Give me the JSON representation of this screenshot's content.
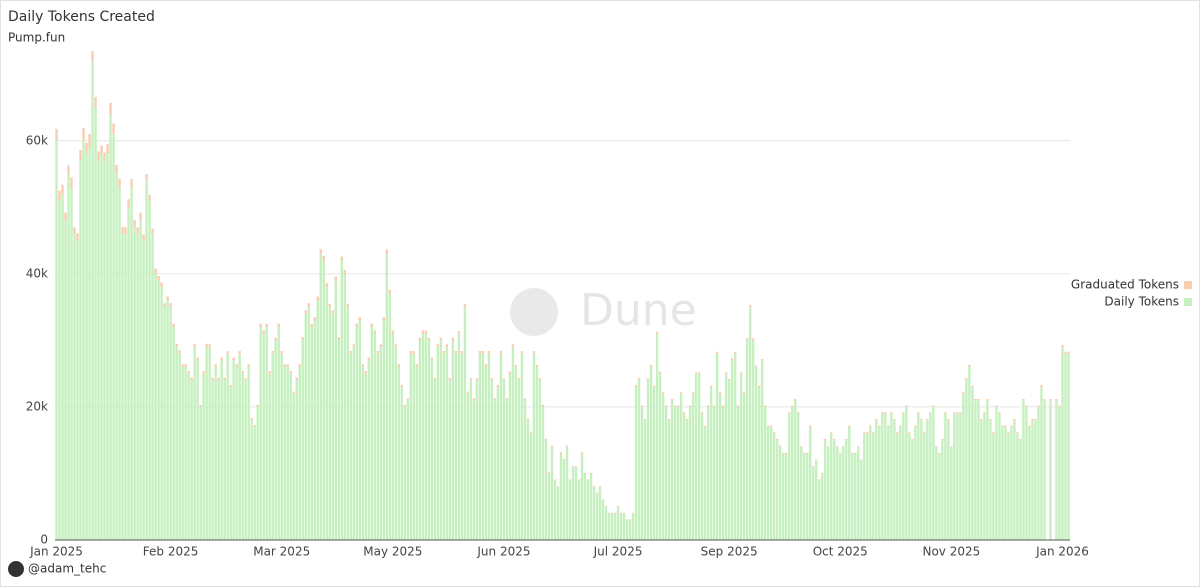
{
  "chart_data": {
    "type": "stacked_bar",
    "title": "Daily Tokens Created",
    "subtitle": "Pump.fun",
    "watermark": "Dune",
    "credit": "@adam_tehc",
    "categories": [
      "Jan 2025",
      null,
      null,
      null,
      null,
      null,
      null,
      null,
      null,
      null,
      null,
      null,
      null,
      null,
      null,
      null,
      null,
      null,
      null,
      null,
      null,
      null,
      null,
      null,
      null,
      null,
      null,
      null,
      null,
      null,
      null,
      null,
      null,
      null,
      null,
      null,
      null,
      null,
      "Feb 2025",
      null,
      null,
      null,
      null,
      null,
      null,
      null,
      null,
      null,
      null,
      null,
      null,
      null,
      null,
      null,
      null,
      null,
      null,
      null,
      null,
      null,
      null,
      null,
      null,
      null,
      null,
      null,
      null,
      null,
      null,
      null,
      null,
      null,
      null,
      null,
      null,
      "Mar 2025",
      null,
      null,
      null,
      null,
      null,
      null,
      null,
      null,
      null,
      null,
      null,
      null,
      null,
      null,
      null,
      null,
      null,
      null,
      null,
      null,
      null,
      null,
      null,
      null,
      null,
      null,
      null,
      null,
      null,
      null,
      null,
      null,
      null,
      null,
      null,
      null,
      "May 2025",
      null,
      null,
      null,
      null,
      null,
      null,
      null,
      null,
      null,
      null,
      null,
      null,
      null,
      null,
      null,
      null,
      null,
      null,
      null,
      null,
      null,
      null,
      null,
      null,
      null,
      null,
      null,
      null,
      null,
      null,
      null,
      null,
      null,
      null,
      null,
      null,
      "Jun 2025",
      null,
      null,
      null,
      null,
      null,
      null,
      null,
      null,
      null,
      null,
      null,
      null,
      null,
      null,
      null,
      null,
      null,
      null,
      null,
      null,
      null,
      null,
      null,
      null,
      null,
      null,
      null,
      null,
      null,
      null,
      null,
      null,
      null,
      null,
      null,
      null,
      null,
      "Jul 2025",
      null,
      null,
      null,
      null,
      null,
      null,
      null,
      null,
      null,
      null,
      null,
      null,
      null,
      null,
      null,
      null,
      null,
      null,
      null,
      null,
      null,
      null,
      null,
      null,
      null,
      null,
      null,
      null,
      null,
      null,
      null,
      null,
      null,
      null,
      null,
      null,
      "Sep 2025",
      null,
      null,
      null,
      null,
      null,
      null,
      null,
      null,
      null,
      null,
      null,
      null,
      null,
      null,
      null,
      null,
      null,
      null,
      null,
      null,
      null,
      null,
      null,
      null,
      null,
      null,
      null,
      null,
      null,
      null,
      null,
      null,
      null,
      null,
      null,
      null,
      "Oct 2025",
      null,
      null,
      null,
      null,
      null,
      null,
      null,
      null,
      null,
      null,
      null,
      null,
      null,
      null,
      null,
      null,
      null,
      null,
      null,
      null,
      null,
      null,
      null,
      null,
      null,
      null,
      null,
      null,
      null,
      null,
      null,
      null,
      null,
      null,
      null,
      null,
      "Nov 2025",
      null,
      null,
      null,
      null,
      null,
      null,
      null,
      null,
      null,
      null,
      null,
      null,
      null,
      null,
      null,
      null,
      null,
      null,
      null,
      null,
      null,
      null,
      null,
      null,
      null,
      null,
      null,
      null,
      null,
      null,
      null,
      null,
      null,
      null,
      null,
      null,
      "Jan 2026",
      null,
      null
    ],
    "series": [
      {
        "name": "Daily Tokens",
        "color": "#c6f0c0",
        "values": [
          60000,
          51000,
          52000,
          48000,
          55000,
          53000,
          46000,
          45000,
          57000,
          60000,
          58000,
          59000,
          72000,
          65000,
          57000,
          58000,
          57000,
          58000,
          64000,
          61000,
          55000,
          53000,
          46000,
          46000,
          50000,
          53000,
          47000,
          46000,
          48000,
          45000,
          54000,
          51000,
          46000,
          40000,
          39000,
          38000,
          35000,
          36000,
          35000,
          32000,
          29000,
          28000,
          26000,
          26000,
          25000,
          24000,
          29000,
          27000,
          20000,
          25000,
          29000,
          29000,
          24000,
          26000,
          24000,
          27000,
          24000,
          28000,
          23000,
          27000,
          26000,
          28000,
          25000,
          24000,
          26000,
          18000,
          17000,
          20000,
          32000,
          31000,
          32000,
          25000,
          28000,
          30000,
          32000,
          28000,
          26000,
          26000,
          25000,
          22000,
          24000,
          26000,
          30000,
          34000,
          35000,
          32000,
          33000,
          36000,
          43000,
          42000,
          38000,
          35000,
          34000,
          39000,
          30000,
          42000,
          40000,
          35000,
          28000,
          29000,
          32000,
          33000,
          26000,
          25000,
          27000,
          32000,
          31000,
          28000,
          29000,
          33000,
          43000,
          37000,
          31000,
          29000,
          26000,
          23000,
          20000,
          21000,
          28000,
          28000,
          26000,
          30000,
          31000,
          31000,
          30000,
          27000,
          24000,
          29000,
          30000,
          28000,
          29000,
          24000,
          30000,
          28000,
          31000,
          28000,
          35000,
          22000,
          24000,
          21000,
          24000,
          28000,
          28000,
          26000,
          28000,
          24000,
          21000,
          23000,
          28000,
          24000,
          21000,
          25000,
          29000,
          26000,
          24000,
          28000,
          21000,
          18000,
          16000,
          28000,
          26000,
          24000,
          20000,
          15000,
          10000,
          14000,
          9000,
          8000,
          13000,
          12000,
          14000,
          9000,
          11000,
          11000,
          9000,
          13000,
          10000,
          9000,
          10000,
          8000,
          7000,
          8000,
          6000,
          5000,
          4000,
          4000,
          4000,
          5000,
          4000,
          4000,
          3000,
          3000,
          4000,
          23000,
          24000,
          20000,
          18000,
          24000,
          26000,
          23000,
          31000,
          25000,
          22000,
          20000,
          18000,
          21000,
          20000,
          20000,
          22000,
          19000,
          18000,
          20000,
          22000,
          25000,
          25000,
          19000,
          17000,
          20000,
          23000,
          20000,
          28000,
          22000,
          20000,
          25000,
          24000,
          27000,
          28000,
          20000,
          25000,
          22000,
          30000,
          35000,
          30000,
          26000,
          23000,
          27000,
          20000,
          17000,
          17000,
          16000,
          15000,
          14000,
          13000,
          13000,
          19000,
          20000,
          21000,
          19000,
          14000,
          13000,
          13000,
          17000,
          11000,
          12000,
          9000,
          10000,
          15000,
          14000,
          16000,
          15000,
          14000,
          13000,
          14000,
          15000,
          17000,
          13000,
          13000,
          14000,
          12000,
          16000,
          16000,
          17000,
          16000,
          18000,
          17000,
          19000,
          19000,
          17000,
          19000,
          18000,
          16000,
          17000,
          19000,
          20000,
          16000,
          15000,
          17000,
          19000,
          18000,
          16000,
          18000,
          19000,
          20000,
          14000,
          13000,
          15000,
          19000,
          18000,
          14000,
          19000,
          19000,
          19000,
          22000,
          24000,
          26000,
          23000,
          21000,
          21000,
          18000,
          19000,
          21000,
          18000,
          16000,
          20000,
          19000,
          17000,
          17000,
          16000,
          17000,
          18000,
          16000,
          15000,
          21000,
          20000,
          17000,
          18000,
          18000,
          20000,
          23000,
          21000,
          0,
          21000,
          0,
          21000,
          20000,
          29000,
          28000,
          28000
        ]
      },
      {
        "name": "Graduated Tokens",
        "color": "#f8cdb0",
        "values": [
          1800,
          1500,
          1400,
          1200,
          1300,
          1500,
          1000,
          1100,
          1600,
          1900,
          1700,
          2000,
          1500,
          1600,
          1400,
          1300,
          1200,
          1500,
          1700,
          1600,
          1400,
          1300,
          1100,
          1000,
          1200,
          1300,
          1100,
          1000,
          1200,
          900,
          1000,
          900,
          800,
          800,
          700,
          700,
          600,
          600,
          600,
          500,
          500,
          500,
          400,
          400,
          400,
          400,
          500,
          400,
          300,
          400,
          500,
          400,
          400,
          400,
          400,
          400,
          400,
          400,
          300,
          400,
          400,
          400,
          400,
          300,
          400,
          300,
          300,
          300,
          500,
          500,
          500,
          400,
          400,
          400,
          500,
          400,
          400,
          400,
          400,
          300,
          400,
          400,
          500,
          500,
          600,
          500,
          500,
          600,
          700,
          700,
          600,
          500,
          500,
          600,
          500,
          600,
          600,
          500,
          400,
          400,
          500,
          500,
          400,
          400,
          400,
          500,
          500,
          400,
          400,
          500,
          700,
          600,
          500,
          400,
          400,
          300,
          300,
          300,
          400,
          400,
          400,
          400,
          500,
          500,
          400,
          400,
          300,
          400,
          400,
          400,
          400,
          300,
          400,
          400,
          400,
          400,
          500,
          300,
          300,
          300,
          300,
          400,
          400,
          400,
          400,
          300,
          300,
          300,
          400,
          300,
          300,
          300,
          400,
          300,
          300,
          400,
          300,
          200,
          200,
          400,
          300,
          300,
          300,
          200,
          200,
          200,
          100,
          100,
          200,
          200,
          200,
          100,
          100,
          100,
          100,
          200,
          100,
          100,
          100,
          100,
          100,
          100,
          100,
          100,
          100,
          100,
          100,
          100,
          100,
          100,
          100,
          100,
          100,
          300,
          300,
          200,
          200,
          300,
          300,
          200,
          300,
          300,
          200,
          200,
          200,
          200,
          200,
          200,
          200,
          200,
          200,
          200,
          200,
          200,
          200,
          200,
          200,
          200,
          200,
          200,
          300,
          200,
          200,
          200,
          200,
          300,
          300,
          200,
          200,
          200,
          300,
          300,
          300,
          200,
          200,
          200,
          200,
          200,
          200,
          200,
          200,
          200,
          100,
          100,
          200,
          200,
          200,
          200,
          100,
          100,
          100,
          200,
          100,
          100,
          100,
          100,
          200,
          100,
          200,
          200,
          100,
          100,
          100,
          200,
          200,
          100,
          100,
          100,
          100,
          200,
          200,
          200,
          200,
          200,
          200,
          200,
          200,
          200,
          200,
          200,
          200,
          200,
          200,
          200,
          200,
          200,
          200,
          200,
          200,
          200,
          200,
          200,
          200,
          100,
          100,
          200,
          200,
          200,
          100,
          200,
          200,
          200,
          200,
          300,
          300,
          200,
          200,
          200,
          200,
          200,
          200,
          200,
          200,
          200,
          200,
          200,
          200,
          200,
          200,
          200,
          200,
          200,
          200,
          200,
          200,
          200,
          200,
          200,
          300,
          200,
          0,
          200,
          0,
          200,
          200,
          300,
          300,
          300
        ]
      }
    ],
    "ylim": [
      0,
      75000
    ],
    "yticks": [
      {
        "value": 0,
        "label": "0"
      },
      {
        "value": 20000,
        "label": "20k"
      },
      {
        "value": 40000,
        "label": "40k"
      },
      {
        "value": 60000,
        "label": "60k"
      }
    ],
    "grid": true,
    "legend": "right"
  }
}
